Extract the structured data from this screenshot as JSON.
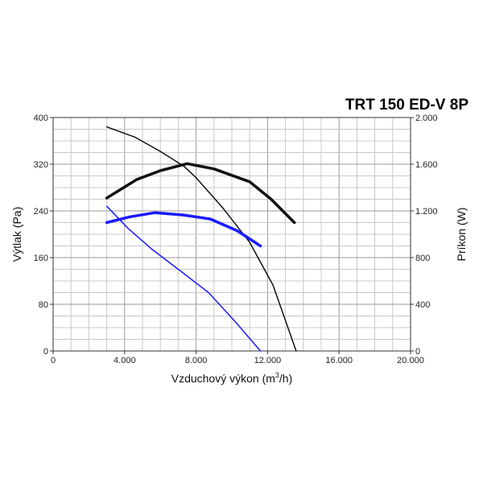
{
  "chart_data": {
    "type": "line",
    "title": "TRT 150 ED-V 8P",
    "xlabel_main": "Vzduchový výkon (m",
    "xlabel_sup": "3",
    "xlabel_end": "/h)",
    "ylabel_left": "Výtlak (Pa)",
    "ylabel_right": "Príkon (W)",
    "xlim": [
      0,
      20000
    ],
    "ylim_left": [
      0,
      400
    ],
    "ylim_right": [
      0,
      2000
    ],
    "x_ticks": [
      {
        "value": 0,
        "label": "0"
      },
      {
        "value": 4000,
        "label": "4.000"
      },
      {
        "value": 8000,
        "label": "8.000"
      },
      {
        "value": 12000,
        "label": "12.000"
      },
      {
        "value": 16000,
        "label": "16.000"
      },
      {
        "value": 20000,
        "label": "20.000"
      }
    ],
    "y_left_ticks": [
      {
        "value": 0,
        "label": "0"
      },
      {
        "value": 80,
        "label": "80"
      },
      {
        "value": 160,
        "label": "160"
      },
      {
        "value": 240,
        "label": "240"
      },
      {
        "value": 320,
        "label": "320"
      },
      {
        "value": 400,
        "label": "400"
      }
    ],
    "y_right_ticks": [
      {
        "value": 0,
        "label": "0"
      },
      {
        "value": 400,
        "label": "400"
      },
      {
        "value": 800,
        "label": "800"
      },
      {
        "value": 1200,
        "label": "1.200"
      },
      {
        "value": 1600,
        "label": "1.600"
      },
      {
        "value": 2000,
        "label": "2.000"
      }
    ],
    "series": [
      {
        "axis": "left",
        "color": "#111111",
        "width": 1.5,
        "points": [
          [
            3000,
            384
          ],
          [
            4600,
            366
          ],
          [
            6000,
            342
          ],
          [
            7300,
            317
          ],
          [
            8000,
            297
          ],
          [
            9500,
            245
          ],
          [
            11000,
            186
          ],
          [
            12300,
            113
          ],
          [
            13600,
            0
          ]
        ]
      },
      {
        "axis": "right",
        "color": "#111111",
        "width": 3.5,
        "points": [
          [
            3000,
            1310
          ],
          [
            4700,
            1470
          ],
          [
            6000,
            1545
          ],
          [
            7500,
            1605
          ],
          [
            9000,
            1560
          ],
          [
            11000,
            1450
          ],
          [
            12200,
            1300
          ],
          [
            13500,
            1100
          ]
        ]
      },
      {
        "axis": "left",
        "color": "#1a1aff",
        "width": 1.5,
        "points": [
          [
            3000,
            248
          ],
          [
            4200,
            210
          ],
          [
            5500,
            175
          ],
          [
            7000,
            140
          ],
          [
            8700,
            100
          ],
          [
            10200,
            50
          ],
          [
            11600,
            0
          ]
        ]
      },
      {
        "axis": "right",
        "color": "#1a1aff",
        "width": 3.5,
        "points": [
          [
            3000,
            1100
          ],
          [
            4300,
            1150
          ],
          [
            5700,
            1185
          ],
          [
            7300,
            1165
          ],
          [
            8800,
            1130
          ],
          [
            10300,
            1030
          ],
          [
            11600,
            900
          ]
        ]
      }
    ]
  }
}
